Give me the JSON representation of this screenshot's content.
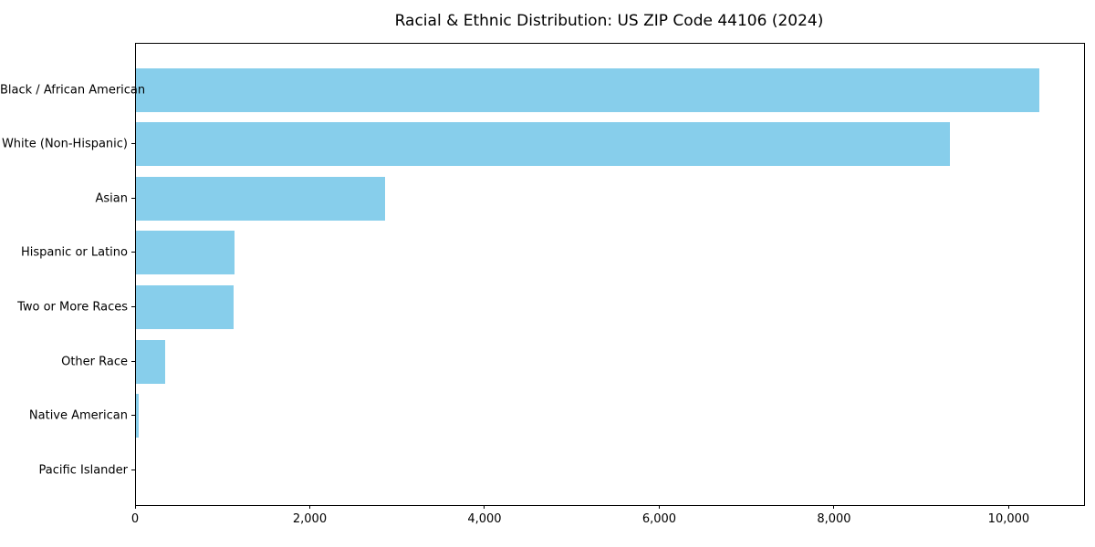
{
  "chart_data": {
    "type": "bar",
    "orientation": "horizontal",
    "title": "Racial & Ethnic Distribution: US ZIP Code 44106 (2024)",
    "categories": [
      "Black / African American",
      "White (Non-Hispanic)",
      "Asian",
      "Hispanic or Latino",
      "Two or More Races",
      "Other Race",
      "Native American",
      "Pacific Islander"
    ],
    "values": [
      10335,
      9320,
      2855,
      1125,
      1115,
      330,
      35,
      0
    ],
    "xlabel": "",
    "ylabel": "",
    "xlim": [
      0,
      10852
    ],
    "x_ticks": [
      0,
      2000,
      4000,
      6000,
      8000,
      10000
    ],
    "x_tick_labels": [
      "0",
      "2,000",
      "4,000",
      "6,000",
      "8,000",
      "10,000"
    ],
    "bar_color": "#87CEEB",
    "axis_color": "#000000",
    "background_color": "#ffffff",
    "grid": false,
    "legend": null
  }
}
